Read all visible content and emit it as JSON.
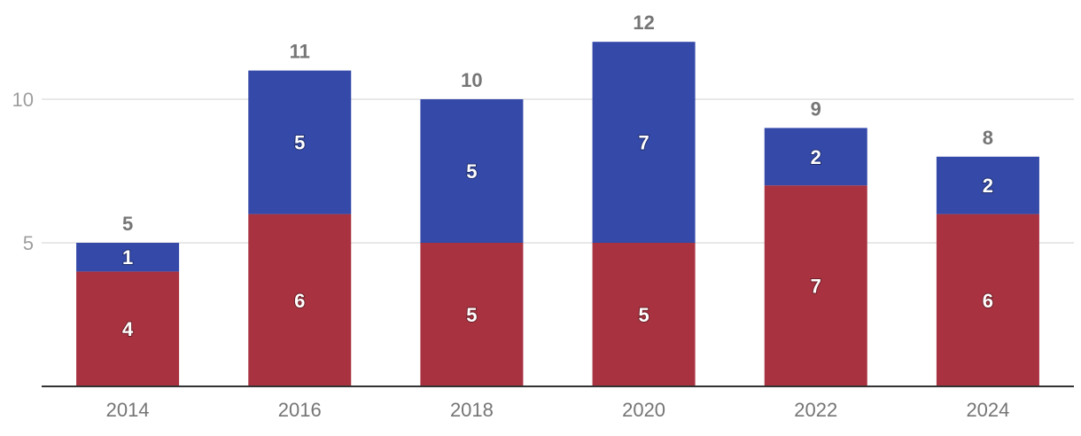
{
  "chart_data": {
    "type": "bar",
    "stacked": true,
    "categories": [
      "2014",
      "2016",
      "2018",
      "2020",
      "2022",
      "2024"
    ],
    "series": [
      {
        "values": [
          4,
          6,
          5,
          5,
          7,
          6
        ],
        "color": "#a83240"
      },
      {
        "values": [
          1,
          5,
          5,
          7,
          2,
          2
        ],
        "color": "#3449a8"
      }
    ],
    "totals": [
      5,
      11,
      10,
      12,
      9,
      8
    ],
    "y_ticks": [
      5,
      10
    ],
    "ylim": [
      0,
      13
    ],
    "grid": true,
    "legend": "none",
    "data_labels": true
  }
}
